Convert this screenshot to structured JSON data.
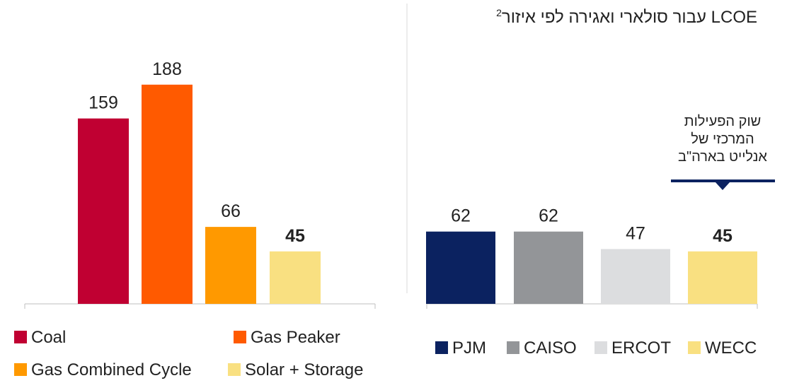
{
  "chart_data": [
    {
      "type": "bar",
      "categories": [
        "Coal",
        "Gas Peaker",
        "Gas Combined Cycle",
        "Solar + Storage"
      ],
      "values": [
        159,
        188,
        66,
        45
      ],
      "colors": [
        "#c00032",
        "#ff5a00",
        "#ff9900",
        "#f9e081"
      ],
      "bold_labels": [
        false,
        false,
        false,
        true
      ]
    },
    {
      "type": "bar",
      "title": "LCOE עבור סולארי ואגירה לפי איזור",
      "title_footnote": "2",
      "annotation": [
        "שוק הפעילות",
        "המרכזי של",
        "אנלייט בארה\"ב"
      ],
      "categories": [
        "PJM",
        "CAISO",
        "ERCOT",
        "WECC"
      ],
      "values": [
        62,
        62,
        47,
        45
      ],
      "colors": [
        "#0b2260",
        "#939598",
        "#dcdddf",
        "#f9e081"
      ],
      "bold_labels": [
        false,
        false,
        false,
        true
      ]
    }
  ]
}
